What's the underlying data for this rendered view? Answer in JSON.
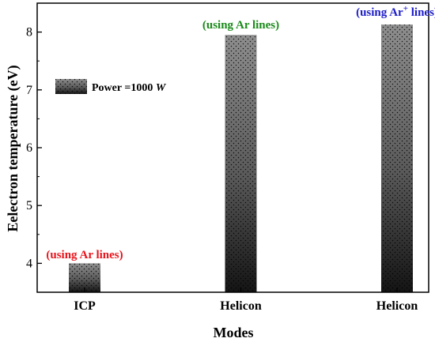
{
  "chart_data": {
    "type": "bar",
    "categories": [
      "ICP",
      "Helicon",
      "Helicon"
    ],
    "values": [
      4.0,
      7.95,
      8.13
    ],
    "xlabel": "Modes",
    "ylabel": "Eelectron temperature (eV)",
    "ylim": [
      3.5,
      8.5
    ],
    "yticks": [
      4,
      5,
      6,
      7,
      8
    ],
    "grid": false,
    "legend": {
      "label": "Power =1000",
      "unit": "W",
      "placement": "top-left"
    },
    "annotations": [
      {
        "bar": 0,
        "text": "(using Ar lines)",
        "superscript": "",
        "suffix": "",
        "color": "#e8141c"
      },
      {
        "bar": 1,
        "text": "(using Ar lines)",
        "superscript": "",
        "suffix": "",
        "color": "#1b8a1b"
      },
      {
        "bar": 2,
        "text": "(using Ar",
        "superscript": "+",
        "suffix": " lines)",
        "color": "#1c1cc8"
      }
    ]
  }
}
